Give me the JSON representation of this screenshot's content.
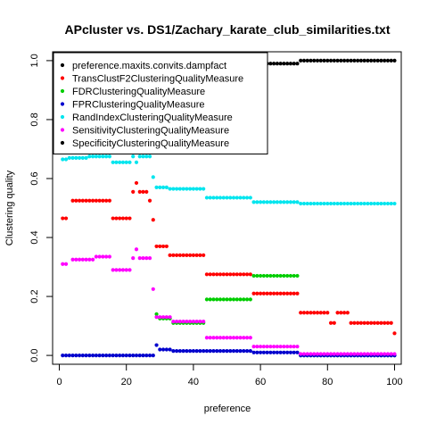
{
  "chart_data": {
    "type": "scatter",
    "title": "APcluster vs. DS1/Zachary_karate_club_similarities.txt",
    "xlabel": "preference",
    "ylabel": "Clustering quality",
    "xlim": [
      -2,
      102
    ],
    "ylim": [
      -0.03,
      1.03
    ],
    "x_ticks": [
      0,
      20,
      40,
      60,
      80,
      100
    ],
    "y_ticks": [
      0.0,
      0.2,
      0.4,
      0.6,
      0.8,
      1.0
    ],
    "x_tick_labels": [
      "0",
      "20",
      "40",
      "60",
      "80",
      "100"
    ],
    "y_tick_labels": [
      "0.0",
      "0.2",
      "0.4",
      "0.6",
      "0.8",
      "1.0"
    ],
    "grid": false,
    "legend_position": "top-left",
    "series": [
      {
        "name": "preference.maxits.convits.dampfact",
        "color": "#000000",
        "segments": []
      },
      {
        "name": "TransClustF2ClusteringQualityMeasure",
        "color": "#ff0000",
        "segments": [
          {
            "from": 1,
            "to": 2,
            "y": 0.465
          },
          {
            "from": 4,
            "to": 15,
            "y": 0.525
          },
          {
            "from": 16,
            "to": 21,
            "y": 0.465
          },
          {
            "from": 22,
            "to": 22,
            "y": 0.555
          },
          {
            "from": 23,
            "to": 23,
            "y": 0.585
          },
          {
            "from": 24,
            "to": 26,
            "y": 0.555
          },
          {
            "from": 27,
            "to": 27,
            "y": 0.525
          },
          {
            "from": 28,
            "to": 28,
            "y": 0.46
          },
          {
            "from": 29,
            "to": 32,
            "y": 0.37
          },
          {
            "from": 33,
            "to": 43,
            "y": 0.34
          },
          {
            "from": 44,
            "to": 57,
            "y": 0.275
          },
          {
            "from": 58,
            "to": 71,
            "y": 0.21
          },
          {
            "from": 72,
            "to": 80,
            "y": 0.145
          },
          {
            "from": 81,
            "to": 82,
            "y": 0.11
          },
          {
            "from": 83,
            "to": 86,
            "y": 0.145
          },
          {
            "from": 87,
            "to": 99,
            "y": 0.11
          },
          {
            "from": 100,
            "to": 100,
            "y": 0.075
          }
        ]
      },
      {
        "name": "FDRClusteringQualityMeasure",
        "color": "#00cd00",
        "segments": [
          {
            "from": 29,
            "to": 29,
            "y": 0.14
          },
          {
            "from": 30,
            "to": 33,
            "y": 0.125
          },
          {
            "from": 34,
            "to": 43,
            "y": 0.11
          },
          {
            "from": 44,
            "to": 57,
            "y": 0.19
          },
          {
            "from": 58,
            "to": 71,
            "y": 0.27
          },
          {
            "from": 72,
            "to": 100,
            "y": 0.0
          }
        ]
      },
      {
        "name": "FPRClusteringQualityMeasure",
        "color": "#0000cd",
        "segments": [
          {
            "from": 1,
            "to": 28,
            "y": 0.0
          },
          {
            "from": 29,
            "to": 29,
            "y": 0.035
          },
          {
            "from": 30,
            "to": 33,
            "y": 0.02
          },
          {
            "from": 34,
            "to": 57,
            "y": 0.015
          },
          {
            "from": 58,
            "to": 71,
            "y": 0.01
          },
          {
            "from": 72,
            "to": 100,
            "y": 0.0
          }
        ]
      },
      {
        "name": "RandIndexClusteringQualityMeasure",
        "color": "#00e5ee",
        "segments": [
          {
            "from": 1,
            "to": 2,
            "y": 0.665
          },
          {
            "from": 3,
            "to": 8,
            "y": 0.67
          },
          {
            "from": 9,
            "to": 15,
            "y": 0.675
          },
          {
            "from": 16,
            "to": 21,
            "y": 0.655
          },
          {
            "from": 22,
            "to": 22,
            "y": 0.675
          },
          {
            "from": 23,
            "to": 23,
            "y": 0.655
          },
          {
            "from": 24,
            "to": 27,
            "y": 0.675
          },
          {
            "from": 28,
            "to": 28,
            "y": 0.605
          },
          {
            "from": 29,
            "to": 32,
            "y": 0.57
          },
          {
            "from": 33,
            "to": 43,
            "y": 0.565
          },
          {
            "from": 44,
            "to": 57,
            "y": 0.535
          },
          {
            "from": 58,
            "to": 71,
            "y": 0.52
          },
          {
            "from": 72,
            "to": 100,
            "y": 0.515
          }
        ]
      },
      {
        "name": "SensitivityClusteringQualityMeasure",
        "color": "#ff00ff",
        "segments": [
          {
            "from": 1,
            "to": 2,
            "y": 0.31
          },
          {
            "from": 4,
            "to": 10,
            "y": 0.325
          },
          {
            "from": 11,
            "to": 15,
            "y": 0.335
          },
          {
            "from": 16,
            "to": 21,
            "y": 0.29
          },
          {
            "from": 22,
            "to": 22,
            "y": 0.33
          },
          {
            "from": 23,
            "to": 23,
            "y": 0.36
          },
          {
            "from": 24,
            "to": 27,
            "y": 0.33
          },
          {
            "from": 28,
            "to": 28,
            "y": 0.225
          },
          {
            "from": 29,
            "to": 33,
            "y": 0.13
          },
          {
            "from": 34,
            "to": 43,
            "y": 0.115
          },
          {
            "from": 44,
            "to": 57,
            "y": 0.06
          },
          {
            "from": 58,
            "to": 71,
            "y": 0.03
          },
          {
            "from": 72,
            "to": 100,
            "y": 0.005
          }
        ]
      },
      {
        "name": "SpecificityClusteringQualityMeasure",
        "color": "#000000",
        "segments": [
          {
            "from": 1,
            "to": 28,
            "y": 1.0
          },
          {
            "from": 29,
            "to": 29,
            "y": 0.965
          },
          {
            "from": 30,
            "to": 33,
            "y": 0.98
          },
          {
            "from": 34,
            "to": 57,
            "y": 0.985
          },
          {
            "from": 58,
            "to": 71,
            "y": 0.99
          },
          {
            "from": 72,
            "to": 100,
            "y": 1.0
          }
        ]
      }
    ]
  }
}
